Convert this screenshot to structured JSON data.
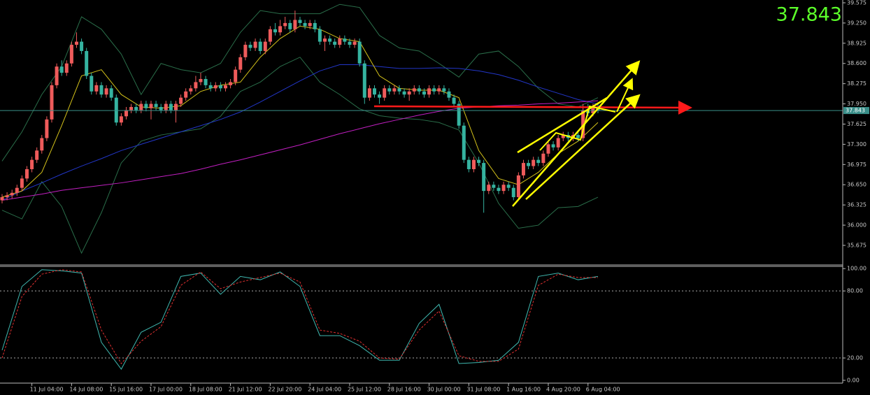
{
  "last_price": 37.843,
  "chart_data": [
    {
      "type": "candlestick",
      "up_color": "#ef5b5b",
      "down_color": "#35b3a0",
      "xlim": [
        -0.42,
        169.3
      ],
      "ylim": [
        35.36,
        39.62
      ],
      "yticks": [
        39.575,
        {
          "value": 39.25,
          "label": "39.250"
        },
        38.925,
        {
          "value": 38.6,
          "label": "38.600"
        },
        38.275,
        {
          "value": 37.95,
          "label": "37.950"
        },
        37.625,
        {
          "value": 37.3,
          "label": "37.300"
        },
        36.975,
        {
          "value": 36.65,
          "label": "36.650"
        },
        36.325,
        {
          "value": 36,
          "label": "36.000"
        },
        35.675
      ],
      "xticks": [
        {
          "value": 6,
          "label": "11 Jul 04:00"
        },
        {
          "value": 14,
          "label": "14 Jul 08:00"
        },
        {
          "value": 22,
          "label": "15 Jul 16:00"
        },
        {
          "value": 30,
          "label": "17 Jul 00:00"
        },
        {
          "value": 38,
          "label": "18 Jul 08:00"
        },
        {
          "value": 46,
          "label": "21 Jul 12:00"
        },
        {
          "value": 54,
          "label": "22 Jul 20:00"
        },
        {
          "value": 62,
          "label": "24 Jul 04:00"
        },
        {
          "value": 70,
          "label": "25 Jul 12:00"
        },
        {
          "value": 78,
          "label": "28 Jul 16:00"
        },
        {
          "value": 86,
          "label": "30 Jul 00:00"
        },
        {
          "value": 94,
          "label": "31 Jul 08:00"
        },
        {
          "value": 102,
          "label": "1 Aug 16:00"
        },
        {
          "value": 110,
          "label": "4 Aug 20:00"
        },
        {
          "value": 118,
          "label": "6 Aug 04:00"
        }
      ],
      "candles": [
        [
          36.4,
          36.5,
          36.35,
          36.45
        ],
        [
          36.45,
          36.53,
          36.4,
          36.48
        ],
        [
          36.48,
          36.57,
          36.43,
          36.52
        ],
        [
          36.52,
          36.65,
          36.47,
          36.6
        ],
        [
          36.6,
          36.8,
          36.55,
          36.75
        ],
        [
          36.75,
          36.95,
          36.7,
          36.9
        ],
        [
          36.9,
          37.1,
          36.85,
          37.05
        ],
        [
          37.05,
          37.25,
          37.0,
          37.2
        ],
        [
          37.2,
          37.45,
          37.15,
          37.4
        ],
        [
          37.4,
          37.75,
          37.35,
          37.7
        ],
        [
          37.7,
          38.3,
          37.65,
          38.25
        ],
        [
          38.25,
          38.6,
          38.2,
          38.55
        ],
        [
          38.55,
          38.65,
          38.4,
          38.45
        ],
        [
          38.45,
          38.65,
          38.4,
          38.6
        ],
        [
          38.6,
          38.95,
          38.55,
          38.9
        ],
        [
          38.9,
          39.1,
          38.85,
          38.95
        ],
        [
          38.95,
          39.0,
          38.75,
          38.8
        ],
        [
          38.8,
          38.85,
          38.35,
          38.4
        ],
        [
          38.4,
          38.45,
          38.1,
          38.15
        ],
        [
          38.15,
          38.3,
          38.1,
          38.25
        ],
        [
          38.25,
          38.3,
          38.05,
          38.1
        ],
        [
          38.1,
          38.25,
          38.05,
          38.2
        ],
        [
          38.2,
          38.25,
          38.0,
          38.05
        ],
        [
          38.05,
          38.1,
          37.6,
          37.65
        ],
        [
          37.65,
          37.8,
          37.6,
          37.75
        ],
        [
          37.75,
          37.9,
          37.7,
          37.85
        ],
        [
          37.85,
          37.95,
          37.8,
          37.9
        ],
        [
          37.9,
          37.95,
          37.8,
          37.85
        ],
        [
          37.85,
          38.0,
          37.8,
          37.95
        ],
        [
          37.95,
          38.0,
          37.83,
          37.88
        ],
        [
          37.88,
          38.0,
          37.7,
          37.95
        ],
        [
          37.95,
          38.0,
          37.85,
          37.9
        ],
        [
          37.9,
          37.95,
          37.8,
          37.85
        ],
        [
          37.85,
          38.0,
          37.8,
          37.95
        ],
        [
          37.95,
          38.0,
          37.8,
          37.85
        ],
        [
          37.85,
          38.0,
          37.65,
          37.95
        ],
        [
          37.95,
          38.1,
          37.9,
          38.05
        ],
        [
          38.05,
          38.2,
          38.0,
          38.15
        ],
        [
          38.15,
          38.25,
          38.1,
          38.2
        ],
        [
          38.2,
          38.4,
          38.15,
          38.3
        ],
        [
          38.3,
          38.45,
          38.25,
          38.35
        ],
        [
          38.35,
          38.4,
          38.2,
          38.25
        ],
        [
          38.25,
          38.3,
          38.15,
          38.2
        ],
        [
          38.2,
          38.3,
          38.15,
          38.25
        ],
        [
          38.25,
          38.3,
          38.15,
          38.2
        ],
        [
          38.2,
          38.3,
          38.15,
          38.25
        ],
        [
          38.25,
          38.35,
          38.2,
          38.3
        ],
        [
          38.3,
          38.55,
          38.25,
          38.5
        ],
        [
          38.5,
          38.75,
          38.45,
          38.7
        ],
        [
          38.7,
          38.95,
          38.65,
          38.9
        ],
        [
          38.9,
          38.95,
          38.8,
          38.85
        ],
        [
          38.85,
          39.0,
          38.8,
          38.95
        ],
        [
          38.95,
          39.0,
          38.75,
          38.8
        ],
        [
          38.8,
          39.0,
          38.75,
          38.95
        ],
        [
          38.95,
          39.2,
          38.9,
          39.15
        ],
        [
          39.15,
          39.25,
          39.05,
          39.1
        ],
        [
          39.1,
          39.3,
          39.05,
          39.2
        ],
        [
          39.2,
          39.35,
          39.15,
          39.25
        ],
        [
          39.25,
          39.3,
          39.1,
          39.15
        ],
        [
          39.15,
          39.45,
          39.1,
          39.3
        ],
        [
          39.3,
          39.35,
          39.2,
          39.25
        ],
        [
          39.25,
          39.3,
          39.15,
          39.2
        ],
        [
          39.2,
          39.3,
          39.15,
          39.25
        ],
        [
          39.25,
          39.3,
          39.1,
          39.15
        ],
        [
          39.15,
          39.2,
          38.9,
          38.95
        ],
        [
          38.95,
          39.05,
          38.8,
          39.0
        ],
        [
          39.0,
          39.05,
          38.9,
          38.95
        ],
        [
          38.95,
          39.0,
          38.85,
          38.9
        ],
        [
          38.9,
          39.05,
          38.85,
          39.0
        ],
        [
          39.0,
          39.05,
          38.9,
          38.95
        ],
        [
          38.95,
          39.0,
          38.85,
          38.9
        ],
        [
          38.9,
          39.0,
          38.85,
          38.95
        ],
        [
          38.95,
          39.0,
          38.55,
          38.6
        ],
        [
          38.6,
          38.65,
          37.95,
          38.05
        ],
        [
          38.05,
          38.25,
          38.0,
          38.2
        ],
        [
          38.2,
          38.25,
          38.05,
          38.1
        ],
        [
          38.1,
          38.15,
          37.95,
          38.05
        ],
        [
          38.05,
          38.25,
          38.0,
          38.2
        ],
        [
          38.2,
          38.25,
          38.1,
          38.15
        ],
        [
          38.15,
          38.25,
          38.1,
          38.2
        ],
        [
          38.2,
          38.25,
          38.1,
          38.15
        ],
        [
          38.15,
          38.2,
          38.05,
          38.1
        ],
        [
          38.1,
          38.2,
          38.0,
          38.15
        ],
        [
          38.15,
          38.25,
          38.1,
          38.2
        ],
        [
          38.2,
          38.25,
          38.1,
          38.15
        ],
        [
          38.15,
          38.2,
          38.05,
          38.1
        ],
        [
          38.1,
          38.25,
          38.05,
          38.2
        ],
        [
          38.2,
          38.25,
          38.1,
          38.15
        ],
        [
          38.15,
          38.25,
          38.1,
          38.2
        ],
        [
          38.2,
          38.25,
          38.1,
          38.15
        ],
        [
          38.15,
          38.2,
          38.0,
          38.05
        ],
        [
          38.05,
          38.1,
          37.9,
          37.95
        ],
        [
          37.95,
          38.0,
          37.55,
          37.6
        ],
        [
          37.6,
          37.65,
          37.0,
          37.05
        ],
        [
          37.05,
          37.1,
          36.85,
          36.9
        ],
        [
          36.9,
          37.1,
          36.85,
          37.05
        ],
        [
          37.05,
          37.1,
          36.95,
          37.0
        ],
        [
          37.0,
          37.05,
          36.2,
          36.55
        ],
        [
          36.55,
          36.7,
          36.5,
          36.65
        ],
        [
          36.65,
          36.7,
          36.55,
          36.6
        ],
        [
          36.6,
          36.65,
          36.5,
          36.55
        ],
        [
          36.55,
          36.7,
          36.5,
          36.65
        ],
        [
          36.65,
          36.7,
          36.55,
          36.6
        ],
        [
          36.6,
          36.65,
          36.4,
          36.45
        ],
        [
          36.45,
          36.85,
          36.4,
          36.8
        ],
        [
          36.8,
          37.05,
          36.75,
          37.0
        ],
        [
          37.0,
          37.05,
          36.9,
          36.95
        ],
        [
          36.95,
          37.1,
          36.9,
          37.05
        ],
        [
          37.05,
          37.1,
          36.95,
          37.0
        ],
        [
          37.0,
          37.2,
          36.95,
          37.15
        ],
        [
          37.15,
          37.35,
          37.1,
          37.3
        ],
        [
          37.3,
          37.35,
          37.2,
          37.25
        ],
        [
          37.25,
          37.45,
          37.2,
          37.4
        ],
        [
          37.4,
          37.5,
          37.35,
          37.45
        ],
        [
          37.45,
          37.5,
          37.35,
          37.4
        ],
        [
          37.4,
          37.5,
          37.35,
          37.45
        ],
        [
          37.45,
          37.5,
          37.35,
          37.4
        ],
        [
          37.4,
          37.95,
          37.35,
          37.85
        ],
        [
          37.85,
          37.95,
          37.75,
          37.8
        ],
        [
          37.8,
          37.95,
          37.75,
          37.9
        ],
        [
          37.9,
          37.95,
          37.8,
          37.84
        ]
      ],
      "series_x": [
        0,
        4,
        8,
        12,
        16,
        20,
        24,
        28,
        32,
        36,
        40,
        44,
        48,
        52,
        56,
        60,
        64,
        68,
        72,
        76,
        80,
        84,
        88,
        92,
        96,
        100,
        104,
        108,
        112,
        116,
        120
      ],
      "series": [
        {
          "color": "#2a6e4a",
          "values": [
            37.03,
            37.5,
            38.1,
            38.55,
            39.35,
            39.15,
            38.75,
            38.1,
            38.6,
            38.5,
            38.45,
            38.6,
            39.1,
            39.45,
            39.4,
            39.4,
            39.4,
            39.55,
            39.5,
            39.05,
            38.85,
            38.8,
            38.6,
            38.38,
            38.75,
            38.8,
            38.55,
            38.2,
            37.95,
            37.9,
            38.05
          ]
        },
        {
          "color": "#2a6e4a",
          "values": [
            36.24,
            36.1,
            36.7,
            36.3,
            35.55,
            36.2,
            37.0,
            37.35,
            37.45,
            37.5,
            37.55,
            37.75,
            38.15,
            38.3,
            38.55,
            38.7,
            38.3,
            38.1,
            37.87,
            37.76,
            37.72,
            37.7,
            37.65,
            37.53,
            37.0,
            36.35,
            35.95,
            36.0,
            36.28,
            36.3,
            36.45
          ]
        },
        {
          "color": "#2236c8",
          "values": [
            36.4,
            36.55,
            36.68,
            36.82,
            36.95,
            37.07,
            37.2,
            37.3,
            37.4,
            37.5,
            37.6,
            37.7,
            37.82,
            37.98,
            38.15,
            38.32,
            38.48,
            38.58,
            38.58,
            38.55,
            38.52,
            38.52,
            38.53,
            38.52,
            38.48,
            38.42,
            38.33,
            38.22,
            38.12,
            38.02,
            37.95
          ]
        },
        {
          "color": "#c21fc2",
          "values": [
            36.4,
            36.45,
            36.5,
            36.56,
            36.6,
            36.64,
            36.68,
            36.73,
            36.78,
            36.83,
            36.9,
            36.98,
            37.05,
            37.13,
            37.21,
            37.29,
            37.38,
            37.47,
            37.55,
            37.63,
            37.7,
            37.77,
            37.83,
            37.88,
            37.9,
            37.92,
            37.93,
            37.95,
            37.96,
            37.98,
            38.0
          ]
        },
        {
          "color": "#d4c21a",
          "values": [
            36.45,
            36.55,
            36.85,
            37.6,
            38.4,
            38.5,
            38.1,
            37.9,
            37.88,
            37.92,
            38.15,
            38.25,
            38.3,
            38.7,
            39.0,
            39.2,
            39.15,
            39.0,
            38.95,
            38.4,
            38.2,
            38.17,
            38.17,
            38.05,
            37.2,
            36.75,
            36.65,
            36.85,
            37.15,
            37.35,
            37.65
          ]
        }
      ]
    },
    {
      "type": "line",
      "xlim": [
        -0.42,
        169.3
      ],
      "ylim": [
        -7.5,
        102
      ],
      "yticks": [
        {
          "value": 100,
          "label": "100.00"
        },
        {
          "value": 80,
          "label": "80.00"
        },
        {
          "value": 20,
          "label": "20.00"
        },
        {
          "value": 0,
          "label": "0.00"
        }
      ],
      "series_x": [
        0,
        4,
        8,
        12,
        16,
        20,
        24,
        28,
        32,
        36,
        40,
        44,
        48,
        52,
        56,
        60,
        64,
        68,
        72,
        76,
        80,
        84,
        88,
        92,
        96,
        100,
        104,
        108,
        112,
        116,
        120
      ],
      "series": [
        {
          "color": "#3fb8b0",
          "values": [
            27,
            84,
            99,
            98,
            96,
            34,
            10,
            43,
            52,
            93,
            96,
            77,
            93,
            90,
            97,
            84,
            40,
            40,
            31,
            18,
            18,
            51,
            68,
            15,
            16,
            18,
            34,
            93,
            96,
            90,
            93
          ]
        },
        {
          "color": "#e03030",
          "dashed": true,
          "values": [
            20,
            75,
            95,
            99,
            97,
            45,
            15,
            35,
            48,
            85,
            97,
            82,
            88,
            92,
            96,
            88,
            45,
            42,
            35,
            20,
            19,
            45,
            62,
            22,
            17,
            17,
            28,
            85,
            95,
            92,
            92
          ]
        }
      ]
    }
  ]
}
